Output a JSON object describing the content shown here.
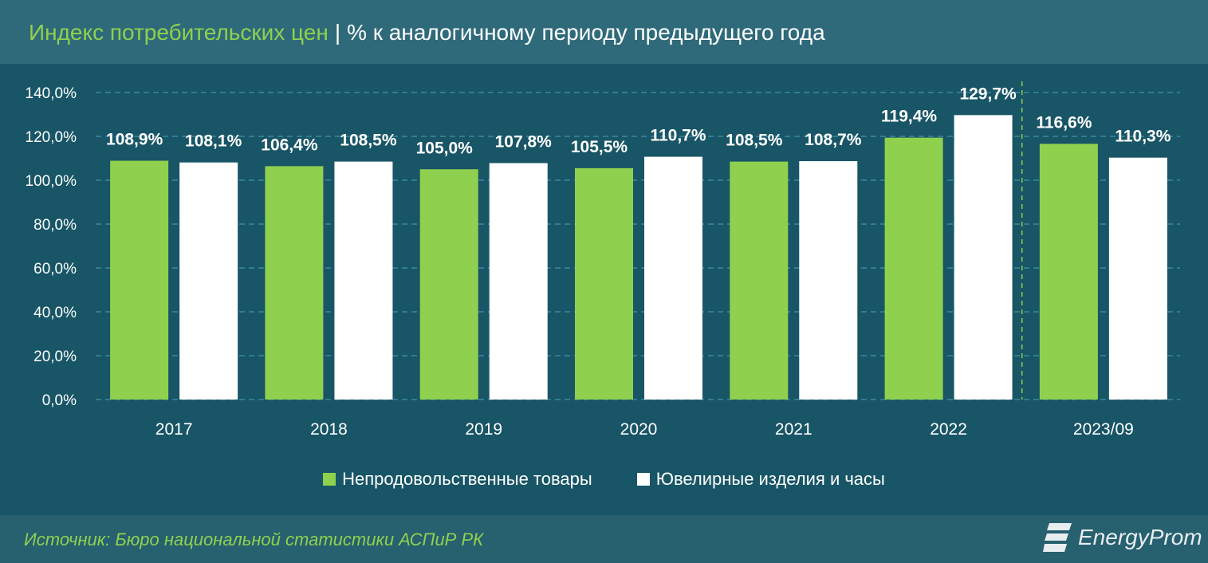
{
  "header": {
    "title_main": "Индекс потребительских цен",
    "separator": "|",
    "title_sub": "% к аналогичному периоду предыдущего года"
  },
  "footer": {
    "source": "Источник: Бюро национальной статистики АСПиР РК",
    "logo_text": "EnergyProm"
  },
  "colors": {
    "series1": "#8fd14f",
    "series2": "#ffffff",
    "background": "#185566",
    "grid": "#3a8a9c",
    "divider": "#8fd14f"
  },
  "chart_data": {
    "type": "bar",
    "categories": [
      "2017",
      "2018",
      "2019",
      "2020",
      "2021",
      "2022",
      "2023/09"
    ],
    "series": [
      {
        "name": "Непродовольственные товары",
        "values": [
          108.9,
          106.4,
          105.0,
          105.5,
          108.5,
          119.4,
          116.6
        ],
        "labels": [
          "108,9%",
          "106,4%",
          "105,0%",
          "105,5%",
          "108,5%",
          "119,4%",
          "116,6%"
        ]
      },
      {
        "name": "Ювелирные изделия и часы",
        "values": [
          108.1,
          108.5,
          107.8,
          110.7,
          108.7,
          129.7,
          110.3
        ],
        "labels": [
          "108,1%",
          "108,5%",
          "107,8%",
          "110,7%",
          "108,7%",
          "129,7%",
          "110,3%"
        ]
      }
    ],
    "ylim": [
      0,
      140
    ],
    "yticks": [
      0,
      20,
      40,
      60,
      80,
      100,
      120,
      140
    ],
    "ytick_labels": [
      "0,0%",
      "20,0%",
      "40,0%",
      "60,0%",
      "80,0%",
      "100,0%",
      "120,0%",
      "140,0%"
    ],
    "grid": true,
    "legend": "bottom",
    "divider_between": [
      "2022",
      "2023/09"
    ]
  }
}
